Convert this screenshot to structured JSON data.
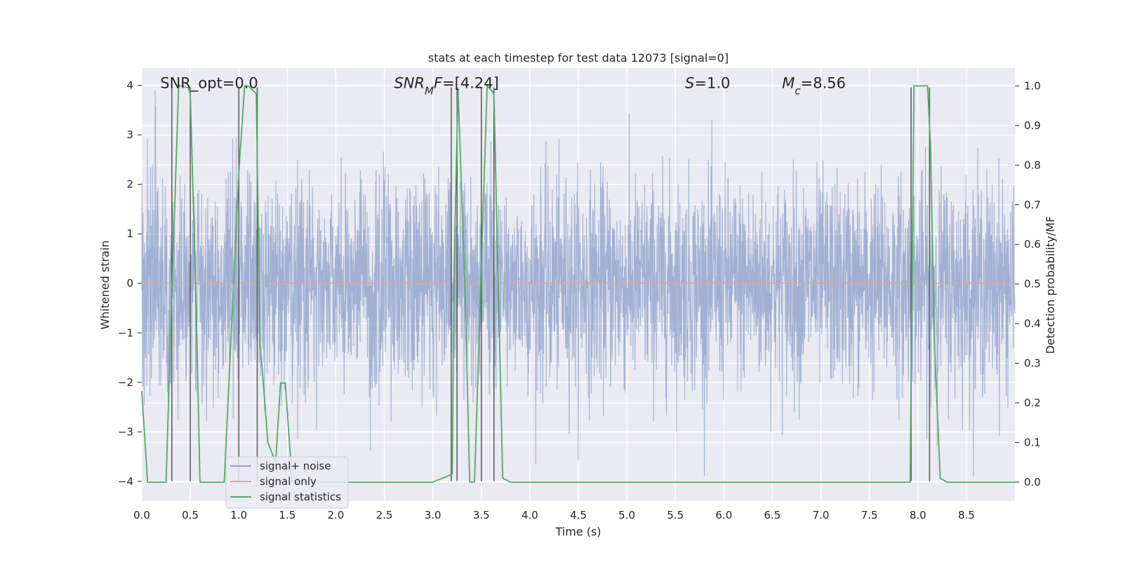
{
  "chart_data": {
    "type": "line",
    "title": "stats at each timestep for test data 12073 [signal=0]",
    "xlabel": "Time (s)",
    "ylabel": "Whitened strain",
    "ylabel_right": "Detection probability/MF",
    "xlim": [
      0.0,
      9.0
    ],
    "ylim": [
      -4.4,
      4.35
    ],
    "ylim_right": [
      -0.048,
      1.045
    ],
    "x_ticks": [
      0.0,
      0.5,
      1.0,
      1.5,
      2.0,
      2.5,
      3.0,
      3.5,
      4.0,
      4.5,
      5.0,
      5.5,
      6.0,
      6.5,
      7.0,
      7.5,
      8.0,
      8.5
    ],
    "x_tick_labels": [
      "0.0",
      "0.5",
      "1.0",
      "1.5",
      "2.0",
      "2.5",
      "3.0",
      "3.5",
      "4.0",
      "4.5",
      "5.0",
      "5.5",
      "6.0",
      "6.5",
      "7.0",
      "7.5",
      "8.0",
      "8.5"
    ],
    "y_ticks": [
      -4,
      -3,
      -2,
      -1,
      0,
      1,
      2,
      3,
      4
    ],
    "y_tick_labels": [
      "−4",
      "−3",
      "−2",
      "−1",
      "0",
      "1",
      "2",
      "3",
      "4"
    ],
    "y_ticks_right": [
      0.0,
      0.1,
      0.2,
      0.3,
      0.4,
      0.5,
      0.6,
      0.7,
      0.8,
      0.9,
      1.0
    ],
    "y_tick_labels_right": [
      "0.0",
      "0.1",
      "0.2",
      "0.3",
      "0.4",
      "0.5",
      "0.6",
      "0.7",
      "0.8",
      "0.9",
      "1.0"
    ],
    "grid": true,
    "legend_position": "lower-left",
    "annotations": [
      {
        "id": "snr-opt",
        "x": 0.19,
        "y": 4.0,
        "parts": [
          {
            "t": "SNR_opt=0.0"
          }
        ]
      },
      {
        "id": "snr-mf",
        "x": 2.6,
        "y": 4.0,
        "parts": [
          {
            "t": "SNR",
            "i": true
          },
          {
            "t": "M",
            "i": true,
            "sub": true
          },
          {
            "t": "F",
            "i": true
          },
          {
            "t": "=[4.24]"
          }
        ]
      },
      {
        "id": "s-value",
        "x": 5.6,
        "y": 4.0,
        "parts": [
          {
            "t": "S",
            "i": true
          },
          {
            "t": "=1.0"
          }
        ]
      },
      {
        "id": "mc-value",
        "x": 6.6,
        "y": 4.0,
        "parts": [
          {
            "t": "M",
            "i": true
          },
          {
            "t": "c",
            "i": true,
            "sub": true
          },
          {
            "t": "=8.56"
          }
        ]
      }
    ],
    "series": [
      {
        "name": "signal+ noise",
        "axis": "left",
        "color": "#8da0cb",
        "note": "white noise, sample rate ~4096 Hz over 9 s, envelope roughly ±2.5 with peaks near ±3.9",
        "duration": 9.0,
        "envelope": [
          -3.9,
          3.9
        ]
      },
      {
        "name": "signal only",
        "axis": "left",
        "color": "#e8a38a",
        "x": [
          0.0,
          9.0
        ],
        "values": [
          0.0,
          0.0
        ]
      },
      {
        "name": "signal statistics",
        "axis": "right",
        "color": "#55a868",
        "x": [
          0.0,
          0.06,
          0.25,
          0.3,
          0.38,
          0.42,
          0.48,
          0.5,
          0.56,
          0.6,
          0.7,
          0.85,
          1.0,
          1.06,
          1.1,
          1.18,
          1.22,
          1.3,
          1.38,
          1.43,
          1.48,
          1.55,
          2.0,
          3.0,
          3.2,
          3.22,
          3.26,
          3.33,
          3.38,
          3.43,
          3.5,
          3.56,
          3.6,
          3.63,
          3.72,
          3.8,
          4.5,
          5.0,
          6.0,
          7.0,
          7.92,
          7.96,
          8.0,
          8.06,
          8.1,
          8.13,
          8.17,
          8.23,
          8.3,
          9.0
        ],
        "values": [
          0.23,
          0.0,
          0.0,
          0.4,
          1.0,
          1.0,
          0.995,
          0.98,
          0.45,
          0.0,
          0.0,
          0.0,
          0.78,
          1.0,
          1.0,
          0.98,
          0.35,
          0.1,
          0.05,
          0.25,
          0.25,
          0.0,
          0.0,
          0.0,
          0.02,
          0.55,
          0.99,
          0.5,
          0.0,
          0.0,
          0.55,
          1.0,
          0.99,
          0.98,
          0.01,
          0.0,
          0.0,
          0.0,
          0.0,
          0.0,
          0.0,
          1.0,
          1.0,
          1.0,
          1.0,
          0.85,
          0.35,
          0.01,
          0.0,
          0.0
        ]
      }
    ],
    "vlines": {
      "color": "#555555",
      "x": [
        0.31,
        0.5,
        1.0,
        1.19,
        3.19,
        3.25,
        3.5,
        3.63,
        7.93,
        8.12
      ],
      "y_range": [
        -4.0,
        3.96
      ]
    }
  }
}
